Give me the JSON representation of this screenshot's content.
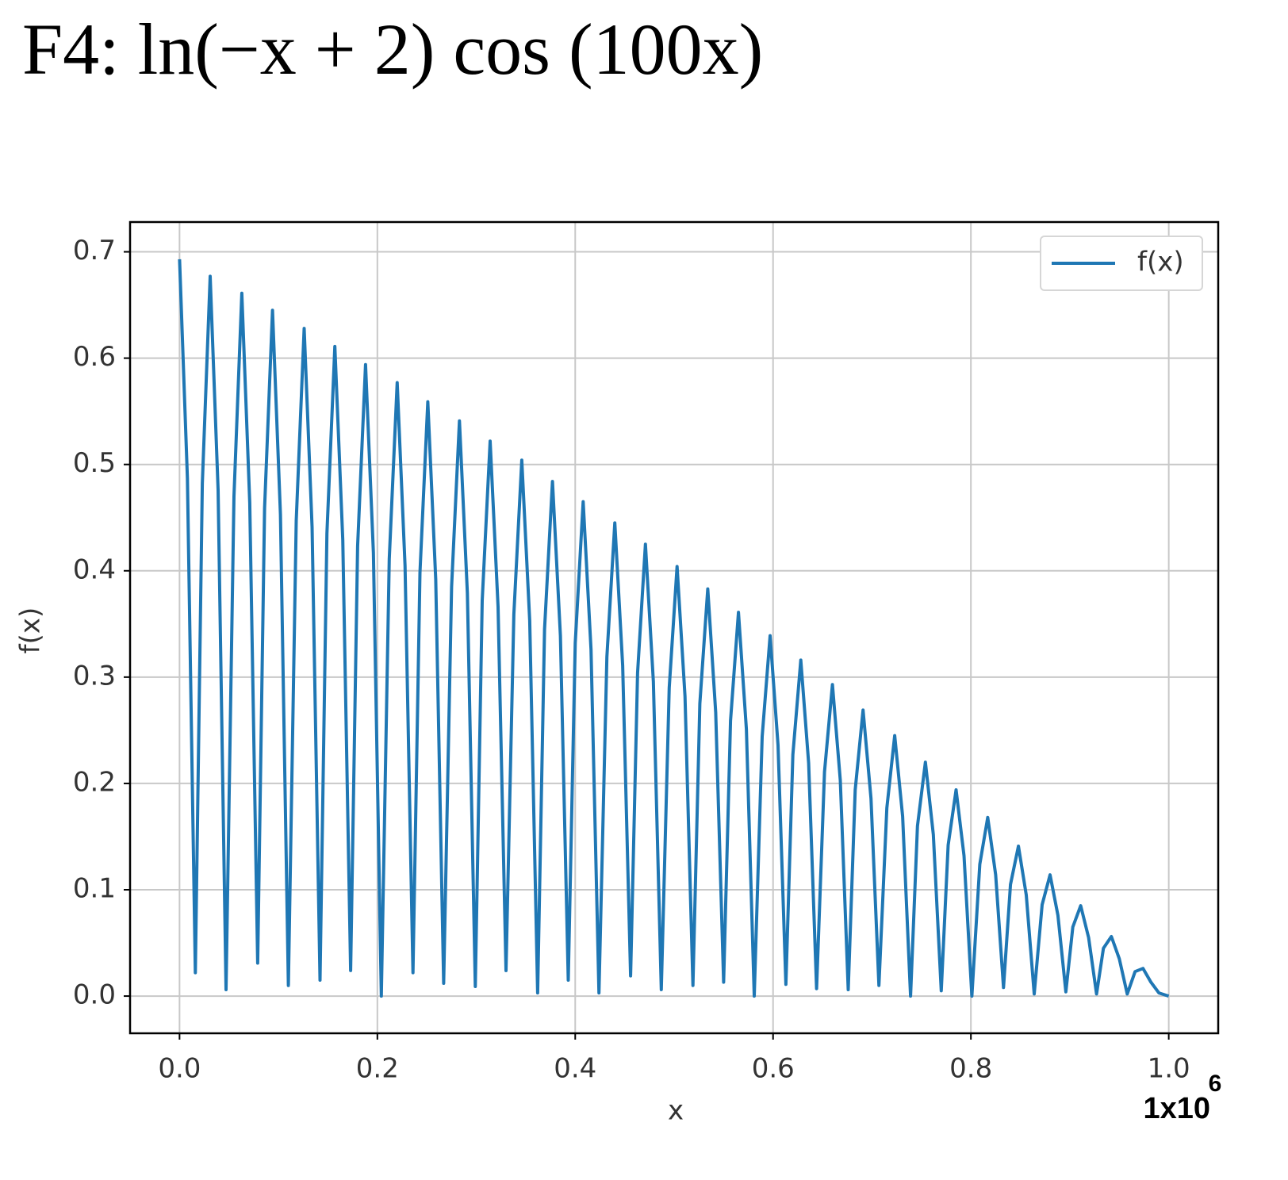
{
  "chart_data": {
    "type": "line",
    "title": "F4: ln(−x + 2) cos (100x)",
    "xlabel": "x",
    "ylabel": "f(x)",
    "x_offset_text": {
      "base": "1x10",
      "exponent": "6"
    },
    "legend": "upper right",
    "grid": true,
    "xlim": [
      -0.05,
      1.05
    ],
    "ylim": [
      -0.035,
      0.728
    ],
    "xticks": [
      {
        "value": 0,
        "label": "0.0"
      },
      {
        "value": 0.2,
        "label": "0.2"
      },
      {
        "value": 0.4,
        "label": "0.4"
      },
      {
        "value": 0.6,
        "label": "0.6"
      },
      {
        "value": 0.8,
        "label": "0.8"
      },
      {
        "value": 1,
        "label": "1.0"
      }
    ],
    "yticks": [
      {
        "value": 0,
        "label": "0.0"
      },
      0.1,
      0.2,
      0.3,
      0.4,
      0.5,
      0.6,
      0.7
    ],
    "series": [
      {
        "name": "f(x)",
        "color": "#1f77b4",
        "x": [
          0,
          0.008,
          0.016,
          0.023,
          0.031,
          0.039,
          0.047,
          0.055,
          0.063,
          0.071,
          0.079,
          0.086,
          0.094,
          0.102,
          0.11,
          0.118,
          0.126,
          0.134,
          0.142,
          0.149,
          0.157,
          0.165,
          0.173,
          0.18,
          0.188,
          0.196,
          0.204,
          0.212,
          0.22,
          0.228,
          0.236,
          0.243,
          0.251,
          0.259,
          0.267,
          0.275,
          0.283,
          0.291,
          0.299,
          0.306,
          0.314,
          0.322,
          0.33,
          0.338,
          0.346,
          0.354,
          0.362,
          0.369,
          0.377,
          0.385,
          0.393,
          0.4,
          0.408,
          0.416,
          0.424,
          0.432,
          0.44,
          0.448,
          0.456,
          0.463,
          0.471,
          0.479,
          0.487,
          0.495,
          0.503,
          0.511,
          0.519,
          0.526,
          0.534,
          0.542,
          0.55,
          0.557,
          0.565,
          0.573,
          0.581,
          0.589,
          0.597,
          0.605,
          0.613,
          0.62,
          0.628,
          0.636,
          0.644,
          0.652,
          0.66,
          0.668,
          0.676,
          0.683,
          0.691,
          0.699,
          0.707,
          0.715,
          0.723,
          0.731,
          0.739,
          0.746,
          0.754,
          0.762,
          0.77,
          0.777,
          0.785,
          0.793,
          0.801,
          0.809,
          0.817,
          0.825,
          0.833,
          0.84,
          0.848,
          0.856,
          0.864,
          0.872,
          0.88,
          0.888,
          0.896,
          0.903,
          0.911,
          0.919,
          0.927,
          0.934,
          0.942,
          0.95,
          0.958,
          0.966,
          0.974,
          0.982,
          0.99,
          1.0
        ],
        "values": [
          0.693,
          0.487,
          0.022,
          0.482,
          0.677,
          0.476,
          0.006,
          0.47,
          0.661,
          0.464,
          0.031,
          0.459,
          0.645,
          0.453,
          0.01,
          0.447,
          0.628,
          0.441,
          0.015,
          0.435,
          0.611,
          0.429,
          0.024,
          0.423,
          0.594,
          0.417,
          0.0,
          0.411,
          0.577,
          0.405,
          0.022,
          0.398,
          0.559,
          0.392,
          0.012,
          0.385,
          0.541,
          0.379,
          0.009,
          0.372,
          0.522,
          0.366,
          0.024,
          0.359,
          0.504,
          0.353,
          0.003,
          0.345,
          0.484,
          0.339,
          0.015,
          0.332,
          0.465,
          0.326,
          0.003,
          0.319,
          0.445,
          0.311,
          0.019,
          0.304,
          0.425,
          0.296,
          0.006,
          0.29,
          0.404,
          0.282,
          0.01,
          0.275,
          0.383,
          0.267,
          0.013,
          0.259,
          0.361,
          0.251,
          0.0,
          0.244,
          0.339,
          0.236,
          0.011,
          0.227,
          0.316,
          0.219,
          0.007,
          0.211,
          0.293,
          0.203,
          0.006,
          0.194,
          0.269,
          0.186,
          0.01,
          0.177,
          0.245,
          0.169,
          0.0,
          0.16,
          0.22,
          0.152,
          0.005,
          0.142,
          0.194,
          0.132,
          0.0,
          0.124,
          0.168,
          0.114,
          0.008,
          0.105,
          0.141,
          0.095,
          0.002,
          0.086,
          0.114,
          0.076,
          0.004,
          0.065,
          0.085,
          0.055,
          0.002,
          0.045,
          0.056,
          0.035,
          0.002,
          0.023,
          0.026,
          0.013,
          0.003,
          0.0
        ]
      }
    ]
  }
}
